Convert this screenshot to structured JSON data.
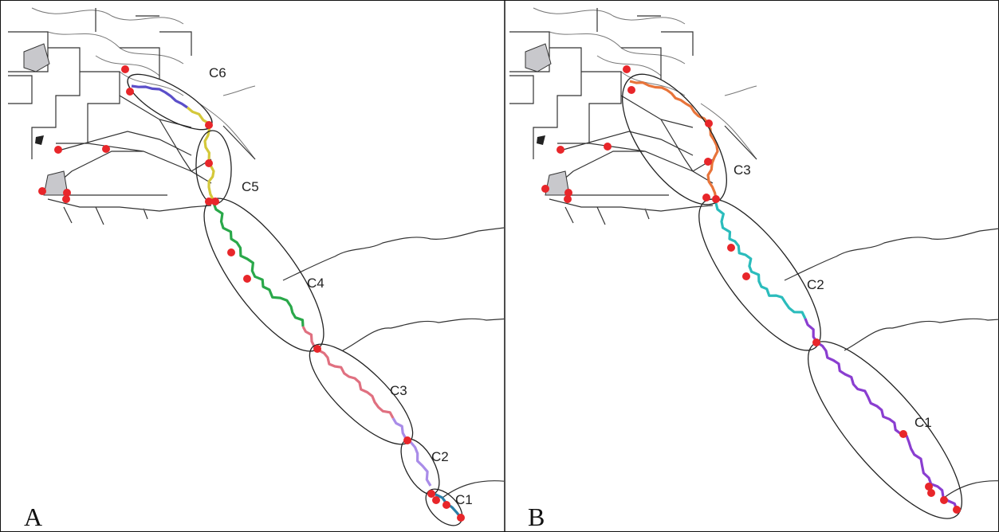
{
  "panels": [
    {
      "label": "A",
      "clusters": [
        "C6",
        "C5",
        "C4",
        "C3",
        "C2",
        "C1"
      ]
    },
    {
      "label": "B",
      "clusters": [
        "C3",
        "C2",
        "C1"
      ]
    }
  ]
}
